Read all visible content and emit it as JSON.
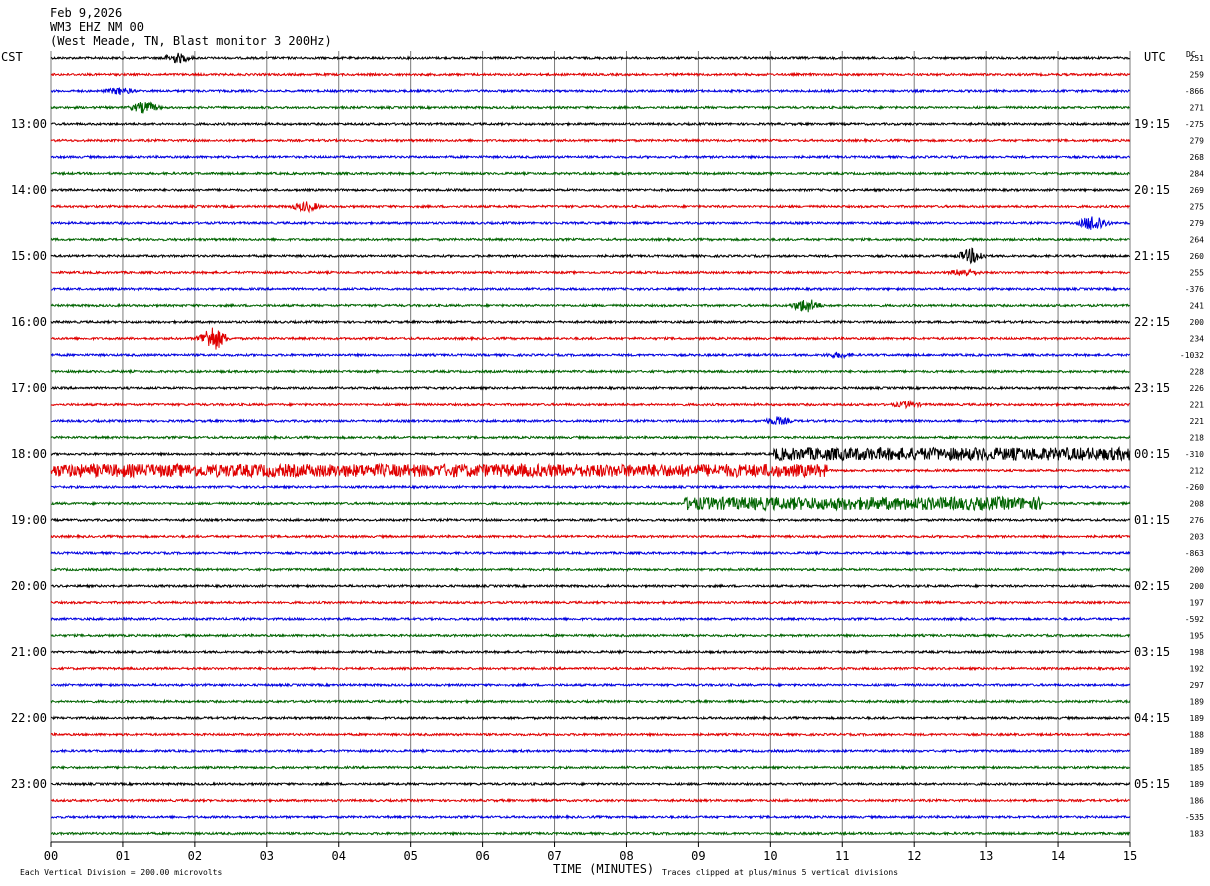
{
  "header": {
    "line1": "Feb 9,2026",
    "line2": "WM3 EHZ NM 00",
    "line3": "(West Meade, TN, Blast monitor 3 200Hz)"
  },
  "labels": {
    "left_tz": "CST",
    "right_tz": "UTC",
    "dc": "DC"
  },
  "footer": {
    "scale_note": "Each Vertical Division =  200.00 microvolts",
    "clip_note": "Traces clipped at plus/minus 5 vertical divisions"
  },
  "colors": [
    "#000000",
    "#e00000",
    "#0000e0",
    "#006400"
  ],
  "chart_data": {
    "type": "line",
    "title": "Feb 9,2026 WM3 EHZ NM 00 (West Meade, TN, Blast monitor 3 200Hz)",
    "xlabel": "TIME (MINUTES)",
    "xlim": [
      0,
      15
    ],
    "x_ticks": [
      "00",
      "01",
      "02",
      "03",
      "04",
      "05",
      "06",
      "07",
      "08",
      "09",
      "10",
      "11",
      "12",
      "13",
      "14",
      "15"
    ],
    "cst_hour_labels": [
      "13:00",
      "14:00",
      "15:00",
      "16:00",
      "17:00",
      "18:00",
      "19:00",
      "20:00",
      "21:00",
      "22:00",
      "23:00"
    ],
    "utc_hour_labels": [
      "19:15",
      "20:15",
      "21:15",
      "22:15",
      "23:15",
      "00:15",
      "01:15",
      "02:15",
      "03:15",
      "04:15",
      "05:15"
    ],
    "trace_count": 48,
    "traces_per_hour": 4,
    "first_labeled_trace": 4,
    "dc_offsets": [
      "251",
      "259",
      "-866",
      "271",
      "-275",
      "279",
      "268",
      "284",
      "269",
      "275",
      "279",
      "264",
      "260",
      "255",
      "-376",
      "241",
      "200",
      "234",
      "-1032",
      "228",
      "226",
      "221",
      "221",
      "218",
      "-310",
      "212",
      "-260",
      "208",
      "276",
      "203",
      "-863",
      "200",
      "200",
      "197",
      "-592",
      "195",
      "198",
      "192",
      "297",
      "189",
      "189",
      "188",
      "189",
      "185",
      "189",
      "186",
      "-535",
      "183"
    ],
    "events": [
      {
        "trace": 0,
        "minute": 1.75,
        "amp": 0.6
      },
      {
        "trace": 2,
        "minute": 0.95,
        "amp": 0.4
      },
      {
        "trace": 3,
        "minute": 1.3,
        "amp": 0.7
      },
      {
        "trace": 9,
        "minute": 3.55,
        "amp": 0.6
      },
      {
        "trace": 10,
        "minute": 14.5,
        "amp": 1.1
      },
      {
        "trace": 12,
        "minute": 12.8,
        "amp": 0.9
      },
      {
        "trace": 13,
        "minute": 12.7,
        "amp": 0.5
      },
      {
        "trace": 15,
        "minute": 10.5,
        "amp": 0.9
      },
      {
        "trace": 17,
        "minute": 2.25,
        "amp": 1.6
      },
      {
        "trace": 18,
        "minute": 10.95,
        "amp": 0.3
      },
      {
        "trace": 21,
        "minute": 11.9,
        "amp": 0.35
      },
      {
        "trace": 22,
        "minute": 10.1,
        "amp": 0.45
      }
    ],
    "noise_bursts": [
      {
        "trace": 24,
        "start_minute": 10.05,
        "end_minute": 15,
        "amp": 1.0
      },
      {
        "trace": 25,
        "start_minute": 0,
        "end_minute": 10.8,
        "amp": 1.0
      },
      {
        "trace": 27,
        "start_minute": 8.8,
        "end_minute": 13.8,
        "amp": 1.0
      }
    ]
  }
}
